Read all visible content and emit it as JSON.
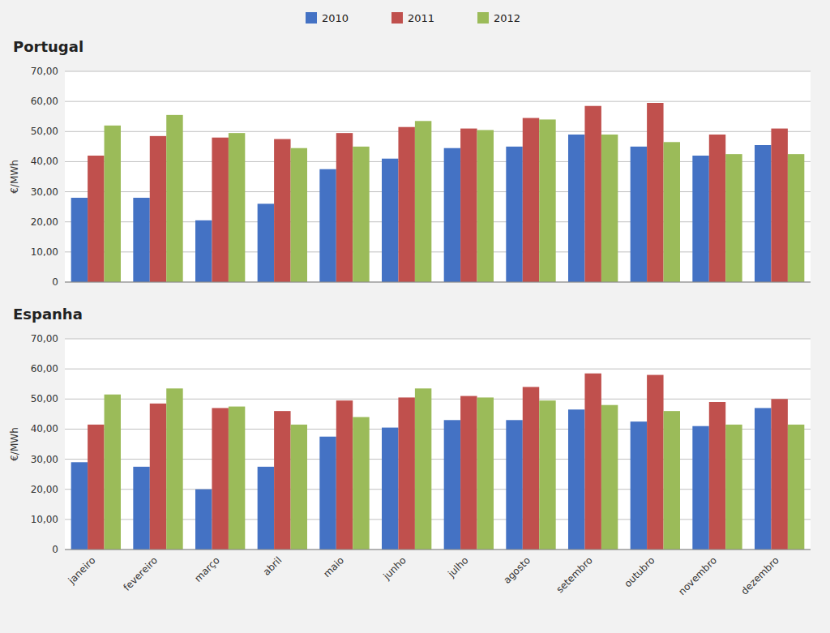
{
  "chart_data": [
    {
      "type": "bar",
      "title": "Portugal",
      "y_label": "€/MWh",
      "categories": [
        null,
        null,
        null,
        null,
        null,
        null,
        null,
        null,
        null,
        null,
        null,
        null
      ],
      "series": [
        {
          "name": "2010",
          "color": "#4472C4",
          "values": [
            28,
            28,
            20.5,
            26,
            37.5,
            41,
            44.5,
            45,
            49,
            45,
            42,
            45.5
          ]
        },
        {
          "name": "2011",
          "color": "#C0504D",
          "values": [
            42,
            48.5,
            48,
            47.5,
            49.5,
            51.5,
            51,
            54.5,
            58.5,
            59.5,
            49,
            51
          ]
        },
        {
          "name": "2012",
          "color": "#9BBB59",
          "values": [
            52,
            55.5,
            49.5,
            44.5,
            45,
            53.5,
            50.5,
            54,
            49,
            46.5,
            42.5,
            42.5
          ]
        }
      ],
      "ylim": [
        0,
        70
      ],
      "yticks": [
        0,
        {
          "value": 10,
          "label": "10,00"
        },
        {
          "value": 20,
          "label": "20,00"
        },
        {
          "value": 30,
          "label": "30,00"
        },
        {
          "value": 40,
          "label": "40,00"
        },
        {
          "value": 50,
          "label": "50,00"
        },
        {
          "value": 60,
          "label": "60,00"
        },
        {
          "value": 70,
          "label": "70,00"
        }
      ],
      "grid": true,
      "legend": "top"
    },
    {
      "type": "bar",
      "title": "Espanha",
      "y_label": "€/MWh",
      "categories": [
        "janeiro",
        "fevereiro",
        "março",
        "abril",
        "maio",
        "junho",
        "julho",
        "agosto",
        "setembro",
        "outubro",
        "novembro",
        "dezembro"
      ],
      "series": [
        {
          "name": "2010",
          "color": "#4472C4",
          "values": [
            29,
            27.5,
            20,
            27.5,
            37.5,
            40.5,
            43,
            43,
            46.5,
            42.5,
            41,
            47
          ]
        },
        {
          "name": "2011",
          "color": "#C0504D",
          "values": [
            41.5,
            48.5,
            47,
            46,
            49.5,
            50.5,
            51,
            54,
            58.5,
            58,
            49,
            50
          ]
        },
        {
          "name": "2012",
          "color": "#9BBB59",
          "values": [
            51.5,
            53.5,
            47.5,
            41.5,
            44,
            53.5,
            50.5,
            49.5,
            48,
            46,
            41.5,
            41.5
          ]
        }
      ],
      "ylim": [
        0,
        70
      ],
      "yticks": [
        0,
        {
          "value": 10,
          "label": "10,00"
        },
        {
          "value": 20,
          "label": "20,00"
        },
        {
          "value": 30,
          "label": "30,00"
        },
        {
          "value": 40,
          "label": "40,00"
        },
        {
          "value": 50,
          "label": "50,00"
        },
        {
          "value": 60,
          "label": "60,00"
        },
        {
          "value": 70,
          "label": "70,00"
        }
      ],
      "grid": true
    }
  ]
}
